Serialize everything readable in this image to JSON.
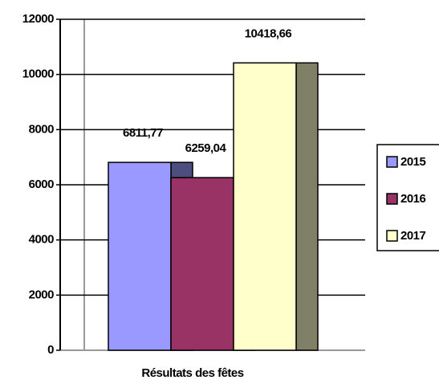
{
  "chart_data": {
    "type": "bar",
    "categories": [
      "Résultats des fêtes"
    ],
    "series": [
      {
        "name": "2015",
        "color": "#9999ff",
        "values": [
          6811.77
        ],
        "value_labels": [
          "6811,77"
        ]
      },
      {
        "name": "2016",
        "color": "#993366",
        "values": [
          6259.04
        ],
        "value_labels": [
          "6259,04"
        ]
      },
      {
        "name": "2017",
        "color": "#ffffcc",
        "values": [
          10418.66
        ],
        "value_labels": [
          "10418,66"
        ]
      }
    ],
    "ylim": [
      0,
      12000
    ],
    "yticks": [
      0,
      2000,
      4000,
      6000,
      8000,
      10000,
      12000
    ],
    "grid": true,
    "legend": "right"
  }
}
